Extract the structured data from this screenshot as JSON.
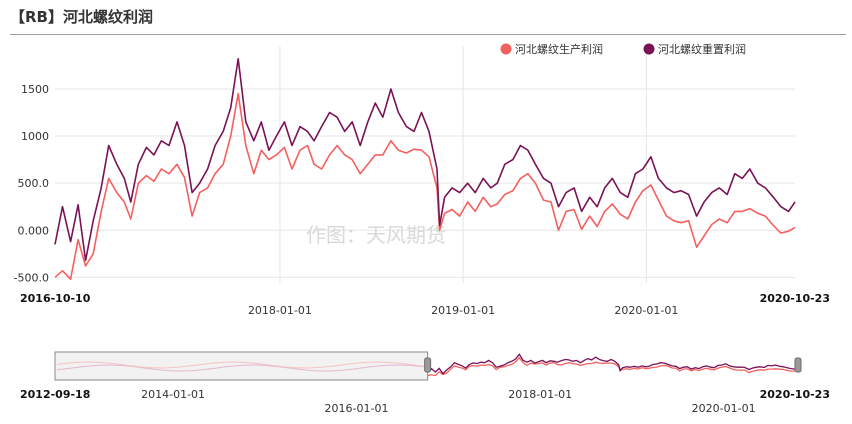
{
  "header": {
    "title": "【RB】河北螺纹利润"
  },
  "watermark": "作图：天风期货",
  "colors": {
    "production_profit": "#f4605f",
    "replacement_profit": "#7a1256",
    "grid": "#e6e6e6",
    "navigator_mask": "#f2f2f2"
  },
  "chart_data": {
    "type": "line",
    "title": "【RB】河北螺纹利润",
    "legend_position": "top-right",
    "grid": true,
    "x_range": [
      "2016-10-10",
      "2020-10-23"
    ],
    "ylim": [
      -560,
      1850
    ],
    "y_ticks": [
      -500,
      0,
      500,
      1000,
      1500
    ],
    "y_tick_labels": [
      "-500.0",
      "0.000",
      "500.0",
      "1000",
      "1500"
    ],
    "x_tick_labels": [
      {
        "date": "2016-10-10",
        "label": "2016-10-10",
        "bold": true
      },
      {
        "date": "2018-01-01",
        "label": "2018-01-01",
        "bold": false
      },
      {
        "date": "2019-01-01",
        "label": "2019-01-01",
        "bold": false
      },
      {
        "date": "2020-01-01",
        "label": "2020-01-01",
        "bold": false
      },
      {
        "date": "2020-10-23",
        "label": "2020-10-23",
        "bold": true
      }
    ],
    "series": [
      {
        "name": "河北螺纹生产利润",
        "color": "#f4605f",
        "points": [
          [
            "2016-10-10",
            -500
          ],
          [
            "2016-10-25",
            -430
          ],
          [
            "2016-11-10",
            -520
          ],
          [
            "2016-11-25",
            -100
          ],
          [
            "2016-12-10",
            -380
          ],
          [
            "2016-12-25",
            -250
          ],
          [
            "2017-01-10",
            200
          ],
          [
            "2017-01-25",
            550
          ],
          [
            "2017-02-10",
            400
          ],
          [
            "2017-02-25",
            300
          ],
          [
            "2017-03-10",
            120
          ],
          [
            "2017-03-25",
            500
          ],
          [
            "2017-04-10",
            580
          ],
          [
            "2017-04-25",
            520
          ],
          [
            "2017-05-10",
            650
          ],
          [
            "2017-05-25",
            600
          ],
          [
            "2017-06-10",
            700
          ],
          [
            "2017-06-25",
            560
          ],
          [
            "2017-07-10",
            150
          ],
          [
            "2017-07-25",
            400
          ],
          [
            "2017-08-10",
            450
          ],
          [
            "2017-08-25",
            600
          ],
          [
            "2017-09-10",
            700
          ],
          [
            "2017-09-25",
            1000
          ],
          [
            "2017-10-10",
            1450
          ],
          [
            "2017-10-25",
            900
          ],
          [
            "2017-11-10",
            600
          ],
          [
            "2017-11-25",
            850
          ],
          [
            "2017-12-10",
            750
          ],
          [
            "2017-12-25",
            800
          ],
          [
            "2018-01-10",
            880
          ],
          [
            "2018-01-25",
            650
          ],
          [
            "2018-02-10",
            850
          ],
          [
            "2018-02-25",
            900
          ],
          [
            "2018-03-10",
            700
          ],
          [
            "2018-03-25",
            650
          ],
          [
            "2018-04-10",
            800
          ],
          [
            "2018-04-25",
            900
          ],
          [
            "2018-05-10",
            800
          ],
          [
            "2018-05-25",
            750
          ],
          [
            "2018-06-10",
            600
          ],
          [
            "2018-06-25",
            700
          ],
          [
            "2018-07-10",
            800
          ],
          [
            "2018-07-25",
            800
          ],
          [
            "2018-08-10",
            950
          ],
          [
            "2018-08-25",
            850
          ],
          [
            "2018-09-10",
            820
          ],
          [
            "2018-09-25",
            860
          ],
          [
            "2018-10-10",
            850
          ],
          [
            "2018-10-25",
            780
          ],
          [
            "2018-11-10",
            450
          ],
          [
            "2018-11-15",
            0
          ],
          [
            "2018-11-25",
            180
          ],
          [
            "2018-12-10",
            220
          ],
          [
            "2018-12-25",
            150
          ],
          [
            "2019-01-10",
            300
          ],
          [
            "2019-01-25",
            200
          ],
          [
            "2019-02-10",
            350
          ],
          [
            "2019-02-25",
            250
          ],
          [
            "2019-03-10",
            280
          ],
          [
            "2019-03-25",
            380
          ],
          [
            "2019-04-10",
            420
          ],
          [
            "2019-04-25",
            550
          ],
          [
            "2019-05-10",
            600
          ],
          [
            "2019-05-25",
            500
          ],
          [
            "2019-06-10",
            320
          ],
          [
            "2019-06-25",
            300
          ],
          [
            "2019-07-10",
            0
          ],
          [
            "2019-07-25",
            200
          ],
          [
            "2019-08-10",
            220
          ],
          [
            "2019-08-25",
            10
          ],
          [
            "2019-09-10",
            150
          ],
          [
            "2019-09-25",
            40
          ],
          [
            "2019-10-10",
            200
          ],
          [
            "2019-10-25",
            280
          ],
          [
            "2019-11-10",
            170
          ],
          [
            "2019-11-25",
            120
          ],
          [
            "2019-12-10",
            300
          ],
          [
            "2019-12-25",
            420
          ],
          [
            "2020-01-10",
            480
          ],
          [
            "2020-01-25",
            320
          ],
          [
            "2020-02-10",
            150
          ],
          [
            "2020-02-25",
            100
          ],
          [
            "2020-03-10",
            80
          ],
          [
            "2020-03-25",
            100
          ],
          [
            "2020-04-10",
            -180
          ],
          [
            "2020-04-25",
            -60
          ],
          [
            "2020-05-10",
            60
          ],
          [
            "2020-05-25",
            120
          ],
          [
            "2020-06-10",
            80
          ],
          [
            "2020-06-25",
            200
          ],
          [
            "2020-07-10",
            200
          ],
          [
            "2020-07-25",
            230
          ],
          [
            "2020-08-10",
            180
          ],
          [
            "2020-08-25",
            150
          ],
          [
            "2020-09-10",
            50
          ],
          [
            "2020-09-25",
            -30
          ],
          [
            "2020-10-10",
            -10
          ],
          [
            "2020-10-23",
            30
          ]
        ]
      },
      {
        "name": "河北螺纹重置利润",
        "color": "#7a1256",
        "points": [
          [
            "2016-10-10",
            -150
          ],
          [
            "2016-10-25",
            250
          ],
          [
            "2016-11-10",
            -120
          ],
          [
            "2016-11-25",
            270
          ],
          [
            "2016-12-10",
            -320
          ],
          [
            "2016-12-25",
            100
          ],
          [
            "2017-01-10",
            450
          ],
          [
            "2017-01-25",
            900
          ],
          [
            "2017-02-10",
            700
          ],
          [
            "2017-02-25",
            550
          ],
          [
            "2017-03-10",
            300
          ],
          [
            "2017-03-25",
            700
          ],
          [
            "2017-04-10",
            880
          ],
          [
            "2017-04-25",
            800
          ],
          [
            "2017-05-10",
            950
          ],
          [
            "2017-05-25",
            900
          ],
          [
            "2017-06-10",
            1150
          ],
          [
            "2017-06-25",
            900
          ],
          [
            "2017-07-10",
            400
          ],
          [
            "2017-07-25",
            500
          ],
          [
            "2017-08-10",
            650
          ],
          [
            "2017-08-25",
            900
          ],
          [
            "2017-09-10",
            1050
          ],
          [
            "2017-09-25",
            1300
          ],
          [
            "2017-10-10",
            1820
          ],
          [
            "2017-10-25",
            1150
          ],
          [
            "2017-11-10",
            950
          ],
          [
            "2017-11-25",
            1150
          ],
          [
            "2017-12-10",
            850
          ],
          [
            "2017-12-25",
            1000
          ],
          [
            "2018-01-10",
            1150
          ],
          [
            "2018-01-25",
            900
          ],
          [
            "2018-02-10",
            1100
          ],
          [
            "2018-02-25",
            1050
          ],
          [
            "2018-03-10",
            950
          ],
          [
            "2018-03-25",
            1100
          ],
          [
            "2018-04-10",
            1250
          ],
          [
            "2018-04-25",
            1200
          ],
          [
            "2018-05-10",
            1050
          ],
          [
            "2018-05-25",
            1150
          ],
          [
            "2018-06-10",
            900
          ],
          [
            "2018-06-25",
            1150
          ],
          [
            "2018-07-10",
            1350
          ],
          [
            "2018-07-25",
            1200
          ],
          [
            "2018-08-10",
            1500
          ],
          [
            "2018-08-25",
            1250
          ],
          [
            "2018-09-10",
            1100
          ],
          [
            "2018-09-25",
            1050
          ],
          [
            "2018-10-10",
            1250
          ],
          [
            "2018-10-25",
            1050
          ],
          [
            "2018-11-10",
            650
          ],
          [
            "2018-11-15",
            50
          ],
          [
            "2018-11-25",
            350
          ],
          [
            "2018-12-10",
            450
          ],
          [
            "2018-12-25",
            400
          ],
          [
            "2019-01-10",
            500
          ],
          [
            "2019-01-25",
            400
          ],
          [
            "2019-02-10",
            550
          ],
          [
            "2019-02-25",
            450
          ],
          [
            "2019-03-10",
            500
          ],
          [
            "2019-03-25",
            700
          ],
          [
            "2019-04-10",
            750
          ],
          [
            "2019-04-25",
            900
          ],
          [
            "2019-05-10",
            850
          ],
          [
            "2019-05-25",
            700
          ],
          [
            "2019-06-10",
            550
          ],
          [
            "2019-06-25",
            500
          ],
          [
            "2019-07-10",
            250
          ],
          [
            "2019-07-25",
            400
          ],
          [
            "2019-08-10",
            450
          ],
          [
            "2019-08-25",
            200
          ],
          [
            "2019-09-10",
            350
          ],
          [
            "2019-09-25",
            250
          ],
          [
            "2019-10-10",
            450
          ],
          [
            "2019-10-25",
            550
          ],
          [
            "2019-11-10",
            400
          ],
          [
            "2019-11-25",
            350
          ],
          [
            "2019-12-10",
            600
          ],
          [
            "2019-12-25",
            650
          ],
          [
            "2020-01-10",
            780
          ],
          [
            "2020-01-25",
            550
          ],
          [
            "2020-02-10",
            450
          ],
          [
            "2020-02-25",
            400
          ],
          [
            "2020-03-10",
            420
          ],
          [
            "2020-03-25",
            380
          ],
          [
            "2020-04-10",
            150
          ],
          [
            "2020-04-25",
            300
          ],
          [
            "2020-05-10",
            400
          ],
          [
            "2020-05-25",
            450
          ],
          [
            "2020-06-10",
            380
          ],
          [
            "2020-06-25",
            600
          ],
          [
            "2020-07-10",
            550
          ],
          [
            "2020-07-25",
            650
          ],
          [
            "2020-08-10",
            500
          ],
          [
            "2020-08-25",
            450
          ],
          [
            "2020-09-10",
            350
          ],
          [
            "2020-09-25",
            250
          ],
          [
            "2020-10-10",
            200
          ],
          [
            "2020-10-23",
            300
          ]
        ]
      }
    ]
  },
  "navigator": {
    "x_range": [
      "2012-09-18",
      "2020-10-23"
    ],
    "selected_range": [
      "2016-10-10",
      "2020-10-23"
    ],
    "x_tick_labels": [
      {
        "date": "2012-09-18",
        "label": "2012-09-18",
        "bold": true
      },
      {
        "date": "2014-01-01",
        "label": "2014-01-01",
        "bold": false
      },
      {
        "date": "2016-01-01",
        "label": "2016-01-01",
        "bold": false
      },
      {
        "date": "2018-01-01",
        "label": "2018-01-01",
        "bold": false
      },
      {
        "date": "2020-01-01",
        "label": "2020-01-01",
        "bold": false
      },
      {
        "date": "2020-10-23",
        "label": "2020-10-23",
        "bold": true
      }
    ]
  }
}
